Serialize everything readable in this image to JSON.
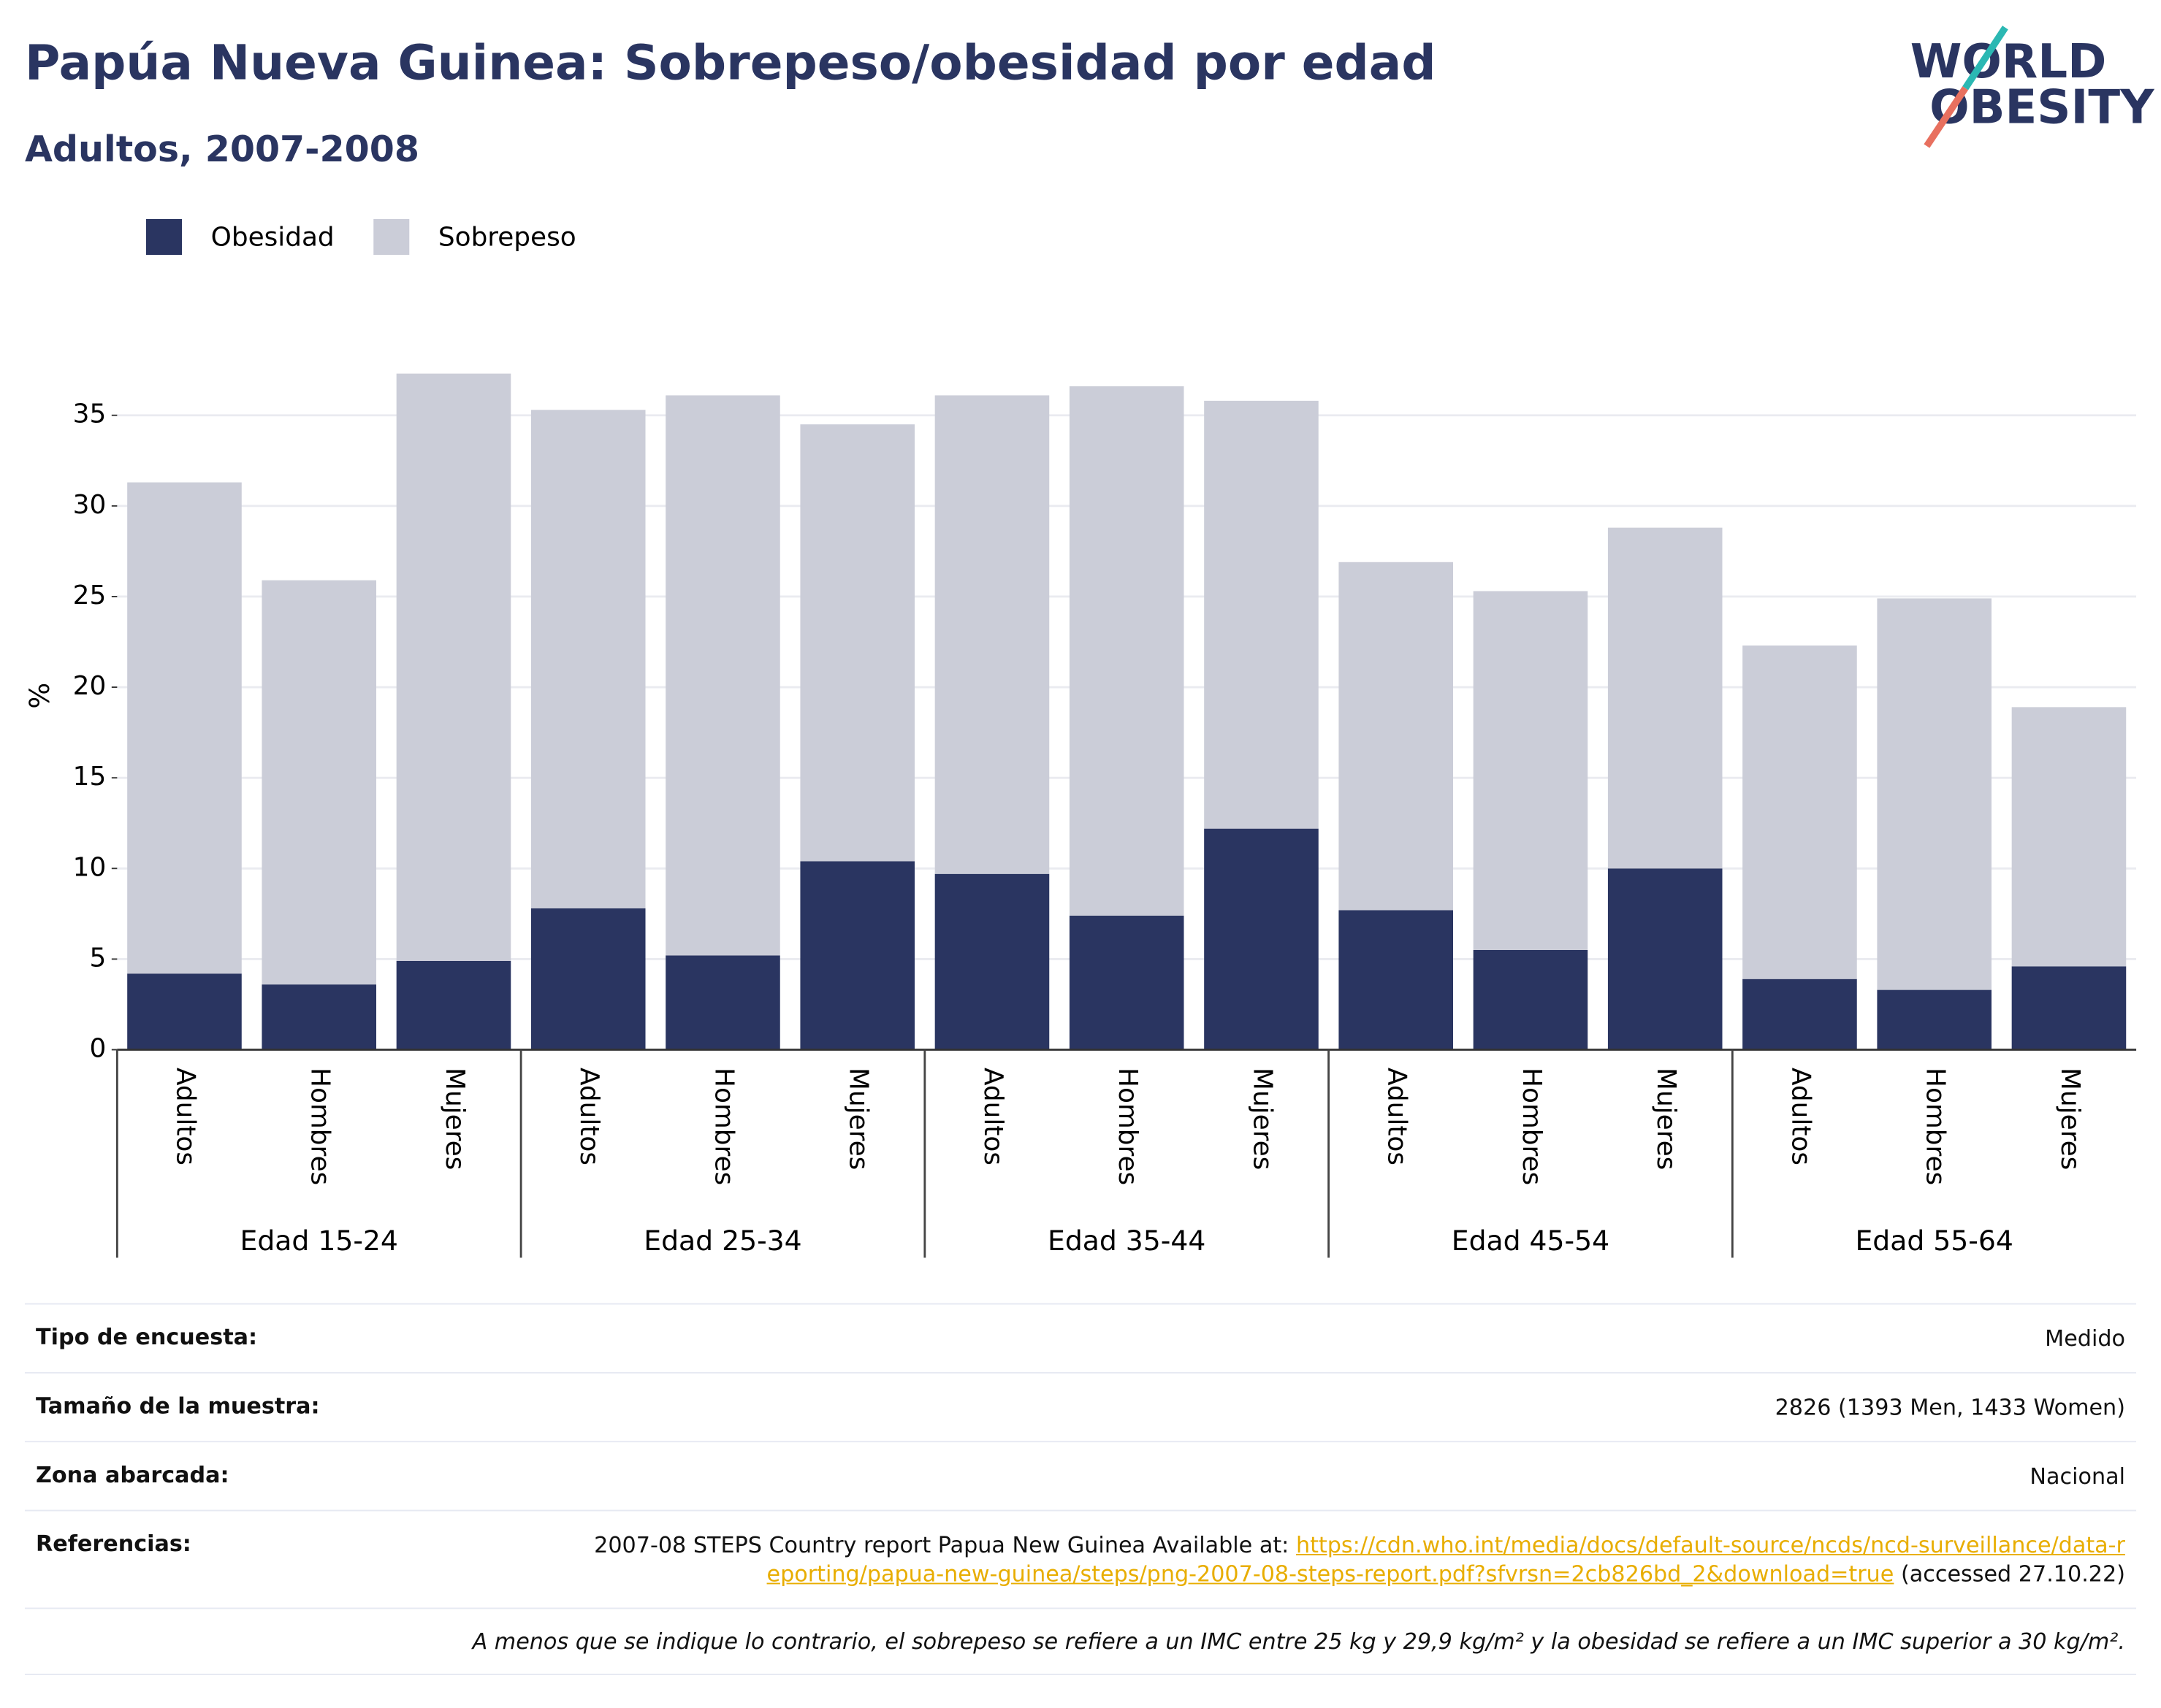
{
  "chart_data": {
    "type": "stacked_bar",
    "title": "Papúa Nueva Guinea: Sobrepeso/obesidad por edad",
    "subtitle": "Adultos, 2007-2008",
    "y_label": "%",
    "groups": [
      {
        "name": "Edad 15-24",
        "categories": [
          "Adultos",
          "Hombres",
          "Mujeres"
        ]
      },
      {
        "name": "Edad 25-34",
        "categories": [
          "Adultos",
          "Hombres",
          "Mujeres"
        ]
      },
      {
        "name": "Edad 35-44",
        "categories": [
          "Adultos",
          "Hombres",
          "Mujeres"
        ]
      },
      {
        "name": "Edad 45-54",
        "categories": [
          "Adultos",
          "Hombres",
          "Mujeres"
        ]
      },
      {
        "name": "Edad 55-64",
        "categories": [
          "Adultos",
          "Hombres",
          "Mujeres"
        ]
      }
    ],
    "series": [
      {
        "name": "Obesidad",
        "color": "#2a3561",
        "values": [
          4.2,
          3.6,
          4.9,
          7.8,
          5.2,
          10.4,
          9.7,
          7.4,
          12.2,
          7.7,
          5.5,
          10.0,
          3.9,
          3.3,
          4.6
        ]
      },
      {
        "name": "Sobrepeso",
        "color": "#cbcdd8",
        "values": [
          27.1,
          22.3,
          32.4,
          27.5,
          30.9,
          24.1,
          26.4,
          29.2,
          23.6,
          19.2,
          19.8,
          18.8,
          18.4,
          21.6,
          14.3
        ]
      }
    ],
    "ylim": [
      0,
      38
    ],
    "yticks": [
      0,
      5,
      10,
      15,
      20,
      25,
      30,
      35
    ],
    "grid": true
  },
  "logo": {
    "line1": "WORLD",
    "line2": "OBESITY"
  },
  "table": {
    "rows": [
      {
        "label": "Tipo de encuesta:",
        "value": "Medido"
      },
      {
        "label": "Tamaño de la muestra:",
        "value": "2826 (1393 Men, 1433 Women)"
      },
      {
        "label": "Zona abarcada:",
        "value": "Nacional"
      }
    ],
    "references": {
      "label": "Referencias:",
      "text": "2007-08 STEPS Country report Papua New Guinea Available at:",
      "link": "https://cdn.who.int/media/docs/default-source/ncds/ncd-surveillance/data-reporting/papua-new-guinea/steps/png-2007-08-steps-report.pdf?sfvrsn=2cb826bd_2&download=true",
      "after": "(accessed 27.10.22)"
    },
    "footnote": "A menos que se indique lo contrario, el sobrepeso se refiere a un IMC entre 25 kg y 29,9 kg/m² y la obesidad se refiere a un IMC superior a 30 kg/m²."
  }
}
